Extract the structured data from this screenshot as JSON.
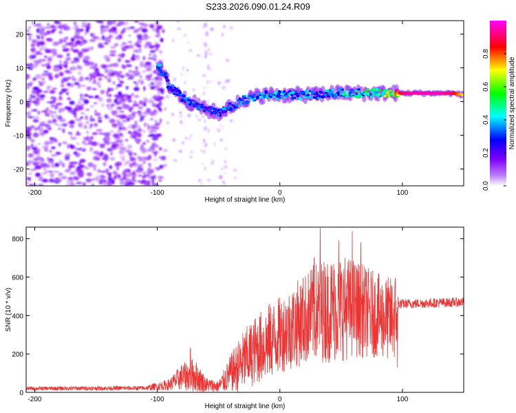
{
  "title": "S233.2026.090.01.24.R09",
  "chart_data": [
    {
      "type": "heatmap",
      "xlabel": "Height of straight line (km)",
      "ylabel": "Frequency (Hz)",
      "xlim": [
        -207,
        150
      ],
      "ylim": [
        -25,
        24
      ],
      "xticks": [
        -200,
        -100,
        0,
        100
      ],
      "yticks": [
        -20,
        -10,
        0,
        10,
        20
      ],
      "colorbar": {
        "label": "Normalized spectral amplitude",
        "range": [
          0,
          1
        ],
        "ticks": [
          0.0,
          0.2,
          0.4,
          0.6,
          0.8
        ],
        "colors": [
          "#ffffff",
          "#7f00ff",
          "#0000ff",
          "#00ffff",
          "#00ff00",
          "#ffff00",
          "#ff0000",
          "#ff00ff"
        ]
      },
      "ridge": [
        {
          "x": -100,
          "y": 10.5,
          "a": 0.35
        },
        {
          "x": -95,
          "y": 8.5,
          "a": 0.3
        },
        {
          "x": -90,
          "y": 4.5,
          "a": 0.3
        },
        {
          "x": -85,
          "y": 3.0,
          "a": 0.3
        },
        {
          "x": -80,
          "y": 1.5,
          "a": 0.3
        },
        {
          "x": -75,
          "y": 0.0,
          "a": 0.3
        },
        {
          "x": -70,
          "y": -0.5,
          "a": 0.28
        },
        {
          "x": -65,
          "y": -1.5,
          "a": 0.28
        },
        {
          "x": -60,
          "y": -2.5,
          "a": 0.28
        },
        {
          "x": -55,
          "y": -3.0,
          "a": 0.28
        },
        {
          "x": -50,
          "y": -3.5,
          "a": 0.28
        },
        {
          "x": -45,
          "y": -2.5,
          "a": 0.3
        },
        {
          "x": -40,
          "y": -1.5,
          "a": 0.3
        },
        {
          "x": -35,
          "y": -0.5,
          "a": 0.3
        },
        {
          "x": -30,
          "y": 0.5,
          "a": 0.32
        },
        {
          "x": -20,
          "y": 1.5,
          "a": 0.32
        },
        {
          "x": -10,
          "y": 2.0,
          "a": 0.34
        },
        {
          "x": 0,
          "y": 2.0,
          "a": 0.36
        },
        {
          "x": 10,
          "y": 2.0,
          "a": 0.36
        },
        {
          "x": 20,
          "y": 2.0,
          "a": 0.36
        },
        {
          "x": 30,
          "y": 2.0,
          "a": 0.36
        },
        {
          "x": 40,
          "y": 2.5,
          "a": 0.38
        },
        {
          "x": 50,
          "y": 2.5,
          "a": 0.38
        },
        {
          "x": 60,
          "y": 2.5,
          "a": 0.4
        },
        {
          "x": 70,
          "y": 2.5,
          "a": 0.45
        },
        {
          "x": 80,
          "y": 2.5,
          "a": 0.5
        },
        {
          "x": 90,
          "y": 2.5,
          "a": 0.55
        },
        {
          "x": 100,
          "y": 2.5,
          "a": 0.9
        },
        {
          "x": 110,
          "y": 2.5,
          "a": 0.95
        },
        {
          "x": 120,
          "y": 2.5,
          "a": 0.95
        },
        {
          "x": 130,
          "y": 2.5,
          "a": 0.95
        },
        {
          "x": 140,
          "y": 2.5,
          "a": 0.9
        },
        {
          "x": 150,
          "y": 2.0,
          "a": 0.7
        }
      ]
    },
    {
      "type": "line",
      "xlabel": "Height of straight line (km)",
      "ylabel": "SNR (10 * v/v)",
      "xlim": [
        -207,
        150
      ],
      "ylim": [
        0,
        860
      ],
      "xticks": [
        -200,
        -100,
        0,
        100
      ],
      "yticks": [
        0,
        200,
        400,
        600,
        800
      ],
      "color": "#ee3333",
      "envelope": [
        {
          "x": -207,
          "base": 20,
          "amp": 10
        },
        {
          "x": -110,
          "base": 22,
          "amp": 12
        },
        {
          "x": -90,
          "base": 40,
          "amp": 30
        },
        {
          "x": -80,
          "base": 80,
          "amp": 70
        },
        {
          "x": -70,
          "base": 90,
          "amp": 90
        },
        {
          "x": -60,
          "base": 40,
          "amp": 40
        },
        {
          "x": -50,
          "base": 30,
          "amp": 30
        },
        {
          "x": -40,
          "base": 100,
          "amp": 100
        },
        {
          "x": -30,
          "base": 160,
          "amp": 160
        },
        {
          "x": -20,
          "base": 220,
          "amp": 180
        },
        {
          "x": -10,
          "base": 260,
          "amp": 200
        },
        {
          "x": 0,
          "base": 300,
          "amp": 200
        },
        {
          "x": 10,
          "base": 340,
          "amp": 220
        },
        {
          "x": 20,
          "base": 380,
          "amp": 240
        },
        {
          "x": 30,
          "base": 420,
          "amp": 260
        },
        {
          "x": 40,
          "base": 430,
          "amp": 280
        },
        {
          "x": 50,
          "base": 440,
          "amp": 280
        },
        {
          "x": 60,
          "base": 440,
          "amp": 260
        },
        {
          "x": 70,
          "base": 420,
          "amp": 240
        },
        {
          "x": 80,
          "base": 400,
          "amp": 220
        },
        {
          "x": 90,
          "base": 380,
          "amp": 220
        },
        {
          "x": 95,
          "base": 400,
          "amp": 240
        },
        {
          "x": 97,
          "base": 460,
          "amp": 25
        },
        {
          "x": 150,
          "base": 470,
          "amp": 25
        }
      ],
      "peaks": [
        {
          "x": 33,
          "y": 855
        },
        {
          "x": 59,
          "y": 840
        },
        {
          "x": 48,
          "y": 790
        },
        {
          "x": 66,
          "y": 780
        },
        {
          "x": 28,
          "y": 700
        },
        {
          "x": -73,
          "y": 230
        },
        {
          "x": 96,
          "y": 130
        }
      ]
    }
  ]
}
